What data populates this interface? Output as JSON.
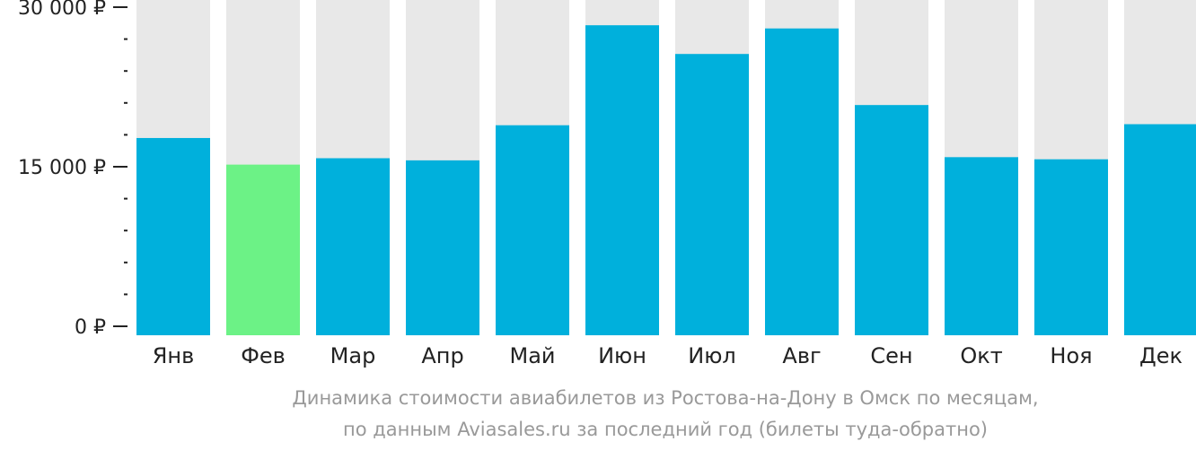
{
  "chart_data": {
    "type": "bar",
    "categories": [
      "Янв",
      "Фев",
      "Мар",
      "Апр",
      "Май",
      "Июн",
      "Июл",
      "Авг",
      "Сен",
      "Окт",
      "Ноя",
      "Дек"
    ],
    "values": [
      17700,
      15200,
      15800,
      15600,
      18900,
      28300,
      25600,
      28000,
      20800,
      15900,
      15700,
      19000
    ],
    "highlight_index": 1,
    "ylim": [
      0,
      30000
    ],
    "yticks": [
      {
        "value": 0,
        "label": "0 ₽"
      },
      {
        "value": 15000,
        "label": "15 000 ₽"
      },
      {
        "value": 30000,
        "label": "30 000 ₽"
      }
    ],
    "minor_tick_step": 3000,
    "caption_line1": "Динамика стоимости авиабилетов из Ростова-на-Дону в Омск по месяцам,",
    "caption_line2": "по данным Aviasales.ru за последний год (билеты туда-обратно)",
    "colors": {
      "bar": "#00b0dc",
      "highlight": "#6cf286",
      "background_bar": "#e8e8e8",
      "axis": "#222222",
      "caption": "#999999"
    },
    "grid": false,
    "legend": "none"
  }
}
